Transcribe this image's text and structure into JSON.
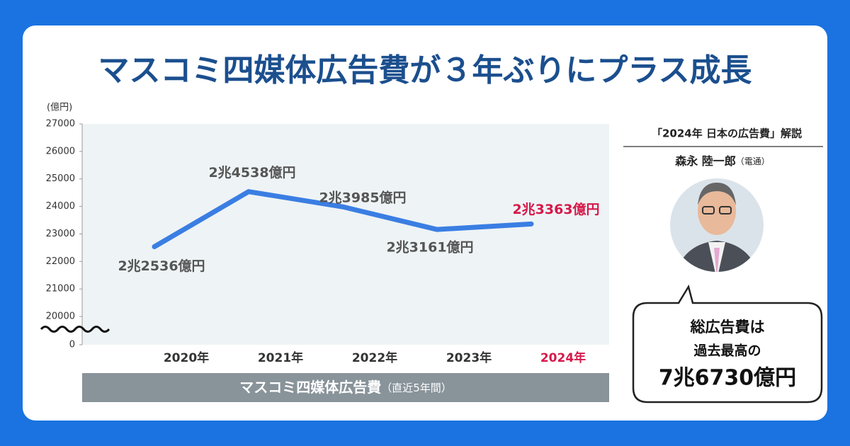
{
  "title": "マスコミ四媒体広告費が３年ぶりにプラス成長",
  "chart_data": {
    "type": "line",
    "y_label": "(億円)",
    "categories": [
      "2020年",
      "2021年",
      "2022年",
      "2023年",
      "2024年"
    ],
    "values": [
      22536,
      24538,
      23985,
      23161,
      23363
    ],
    "value_labels": [
      "2兆2536億円",
      "2兆4538億円",
      "2兆3985億円",
      "2兆3161億円",
      "2兆3363億円"
    ],
    "color": "#3a7ee3",
    "category_colors": [
      "#333333",
      "#333333",
      "#333333",
      "#333333",
      "#d6184a"
    ],
    "value_label_colors": [
      "#555555",
      "#555555",
      "#555555",
      "#555555",
      "#d6184a"
    ],
    "ylim": [
      20000,
      27000
    ],
    "yticks": [
      0,
      20000,
      21000,
      22000,
      23000,
      24000,
      25000,
      26000,
      27000
    ],
    "axis_break": true,
    "plot_background": "#eef3f5",
    "caption": "マスコミ四媒体広告費",
    "caption_note": "（直近5年間）"
  },
  "commentary": {
    "heading": "「2024年 日本の広告費」解説",
    "author": "森永 陸一郎",
    "affiliation": "（電通）",
    "bubble": [
      "総広告費は",
      "過去最高の",
      "7兆6730億円"
    ]
  }
}
